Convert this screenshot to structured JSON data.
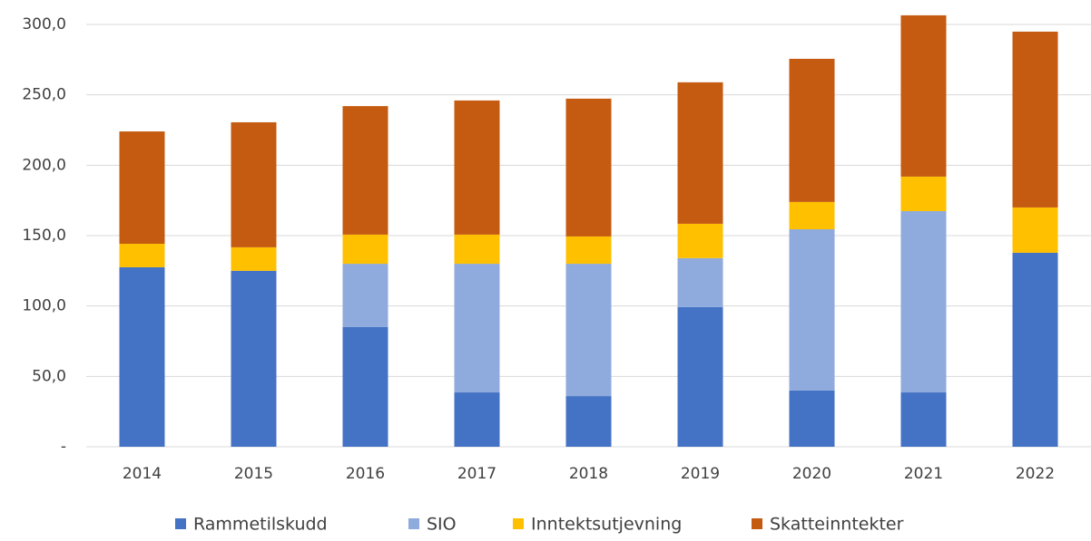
{
  "chart_data": {
    "type": "stacked_bar",
    "categories": [
      "2014",
      "2015",
      "2016",
      "2017",
      "2018",
      "2019",
      "2020",
      "2021",
      "2022"
    ],
    "series": [
      {
        "name": "Rammetilskudd",
        "color": "#4472c4",
        "values": [
          127.5,
          125,
          85,
          38.6,
          36,
          99.2,
          40,
          38.6,
          137.8
        ]
      },
      {
        "name": "SIO",
        "color": "#8faadc",
        "values": [
          0,
          0,
          45,
          91.4,
          94,
          34.8,
          114.5,
          128.8,
          0
        ]
      },
      {
        "name": "Inntektsutjevning",
        "color": "#ffc000",
        "values": [
          16.7,
          16.7,
          20.7,
          20.7,
          19.4,
          24.4,
          19.4,
          24.5,
          32.2
        ]
      },
      {
        "name": "Skatteinntekter",
        "color": "#c55a11",
        "values": [
          79.8,
          88.8,
          91.3,
          95.3,
          97.9,
          100.5,
          101.7,
          114.6,
          124.9
        ]
      }
    ],
    "ylim": [
      0,
      310
    ],
    "yticks": [
      {
        "value": 0,
        "label": "-"
      },
      {
        "value": 50,
        "label": "50,0"
      },
      {
        "value": 100,
        "label": "100,0"
      },
      {
        "value": 150,
        "label": "150,0"
      },
      {
        "value": 200,
        "label": "200,0"
      },
      {
        "value": 250,
        "label": "250,0"
      },
      {
        "value": 300,
        "label": "300,0"
      }
    ],
    "grid": true,
    "legend": "bottom"
  }
}
